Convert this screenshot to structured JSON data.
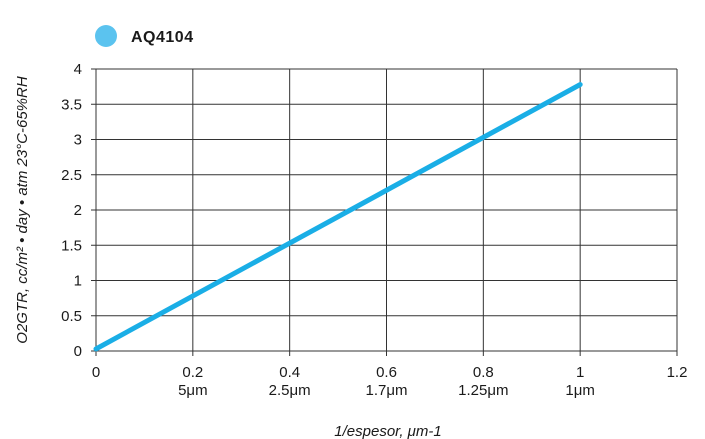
{
  "chart_data": {
    "type": "line",
    "xlabel": "1/espesor, μm-1",
    "ylabel": "O2GTR, cc/m² • day • atm 23°C-65%RH",
    "xlim": [
      0,
      1.2
    ],
    "ylim": [
      0,
      4
    ],
    "x_ticks": [
      "0",
      "0.2",
      "0.4",
      "0.6",
      "0.8",
      "1",
      "1.2"
    ],
    "x_secondary_ticks": [
      "",
      "5μm",
      "2.5μm",
      "1.7μm",
      "1.25μm",
      "1μm",
      ""
    ],
    "y_ticks": [
      "0",
      "0.5",
      "1",
      "1.5",
      "2",
      "2.5",
      "3",
      "3.5",
      "4"
    ],
    "grid": true,
    "legend_position": "top-left",
    "series": [
      {
        "name": "AQ4104",
        "color": "#1aaee6",
        "legend_color": "#5bc3ef",
        "x": [
          0,
          1
        ],
        "y": [
          0.03,
          3.78
        ]
      }
    ]
  }
}
